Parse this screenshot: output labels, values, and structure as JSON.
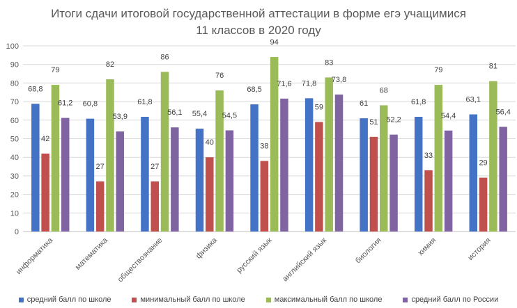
{
  "chart_data": {
    "type": "bar",
    "title_lines": [
      "Итоги сдачи итоговой государственной аттестации в форме егэ учащимися",
      "11 классов в 2020 году"
    ],
    "xlabel": "",
    "ylabel": "",
    "ylim": [
      0,
      100
    ],
    "y_ticks": [
      "0",
      "10",
      "20",
      "30",
      "40",
      "50",
      "60",
      "70",
      "80",
      "90",
      "100"
    ],
    "grid": true,
    "legend_position": "bottom",
    "categories": [
      "информатика",
      "математика",
      "обществознание",
      "физика",
      "русский язык",
      "английский язык",
      "биология",
      "химия",
      "история"
    ],
    "series": [
      {
        "name": "средний балл по школе",
        "color": "#4472C4",
        "values": [
          68.8,
          60.8,
          61.8,
          55.4,
          68.5,
          71.8,
          61,
          61.8,
          63.1
        ],
        "labels": [
          "68,8",
          "60,8",
          "61,8",
          "55,4",
          "68,5",
          "71,8",
          "61",
          "61,8",
          "63,1"
        ]
      },
      {
        "name": "минимальный балл по школе",
        "color": "#C0504D",
        "values": [
          42,
          27,
          27,
          40,
          38,
          59,
          51,
          33,
          29
        ],
        "labels": [
          "42",
          "27",
          "27",
          "40",
          "38",
          "59",
          "51",
          "33",
          "29"
        ]
      },
      {
        "name": "максимальный балл по школе",
        "color": "#9BBB59",
        "values": [
          79,
          82,
          86,
          76,
          94,
          83,
          68,
          79,
          81
        ],
        "labels": [
          "79",
          "82",
          "86",
          "76",
          "94",
          "83",
          "68",
          "79",
          "81"
        ]
      },
      {
        "name": "средний балл по России",
        "color": "#8064A2",
        "values": [
          61.2,
          53.9,
          56.1,
          54.5,
          71.6,
          73.8,
          52.2,
          54.4,
          56.4
        ],
        "labels": [
          "61,2",
          "53,9",
          "56,1",
          "54,5",
          "71,6",
          "73,8",
          "52,2",
          "54,4",
          "56,4"
        ]
      }
    ]
  }
}
